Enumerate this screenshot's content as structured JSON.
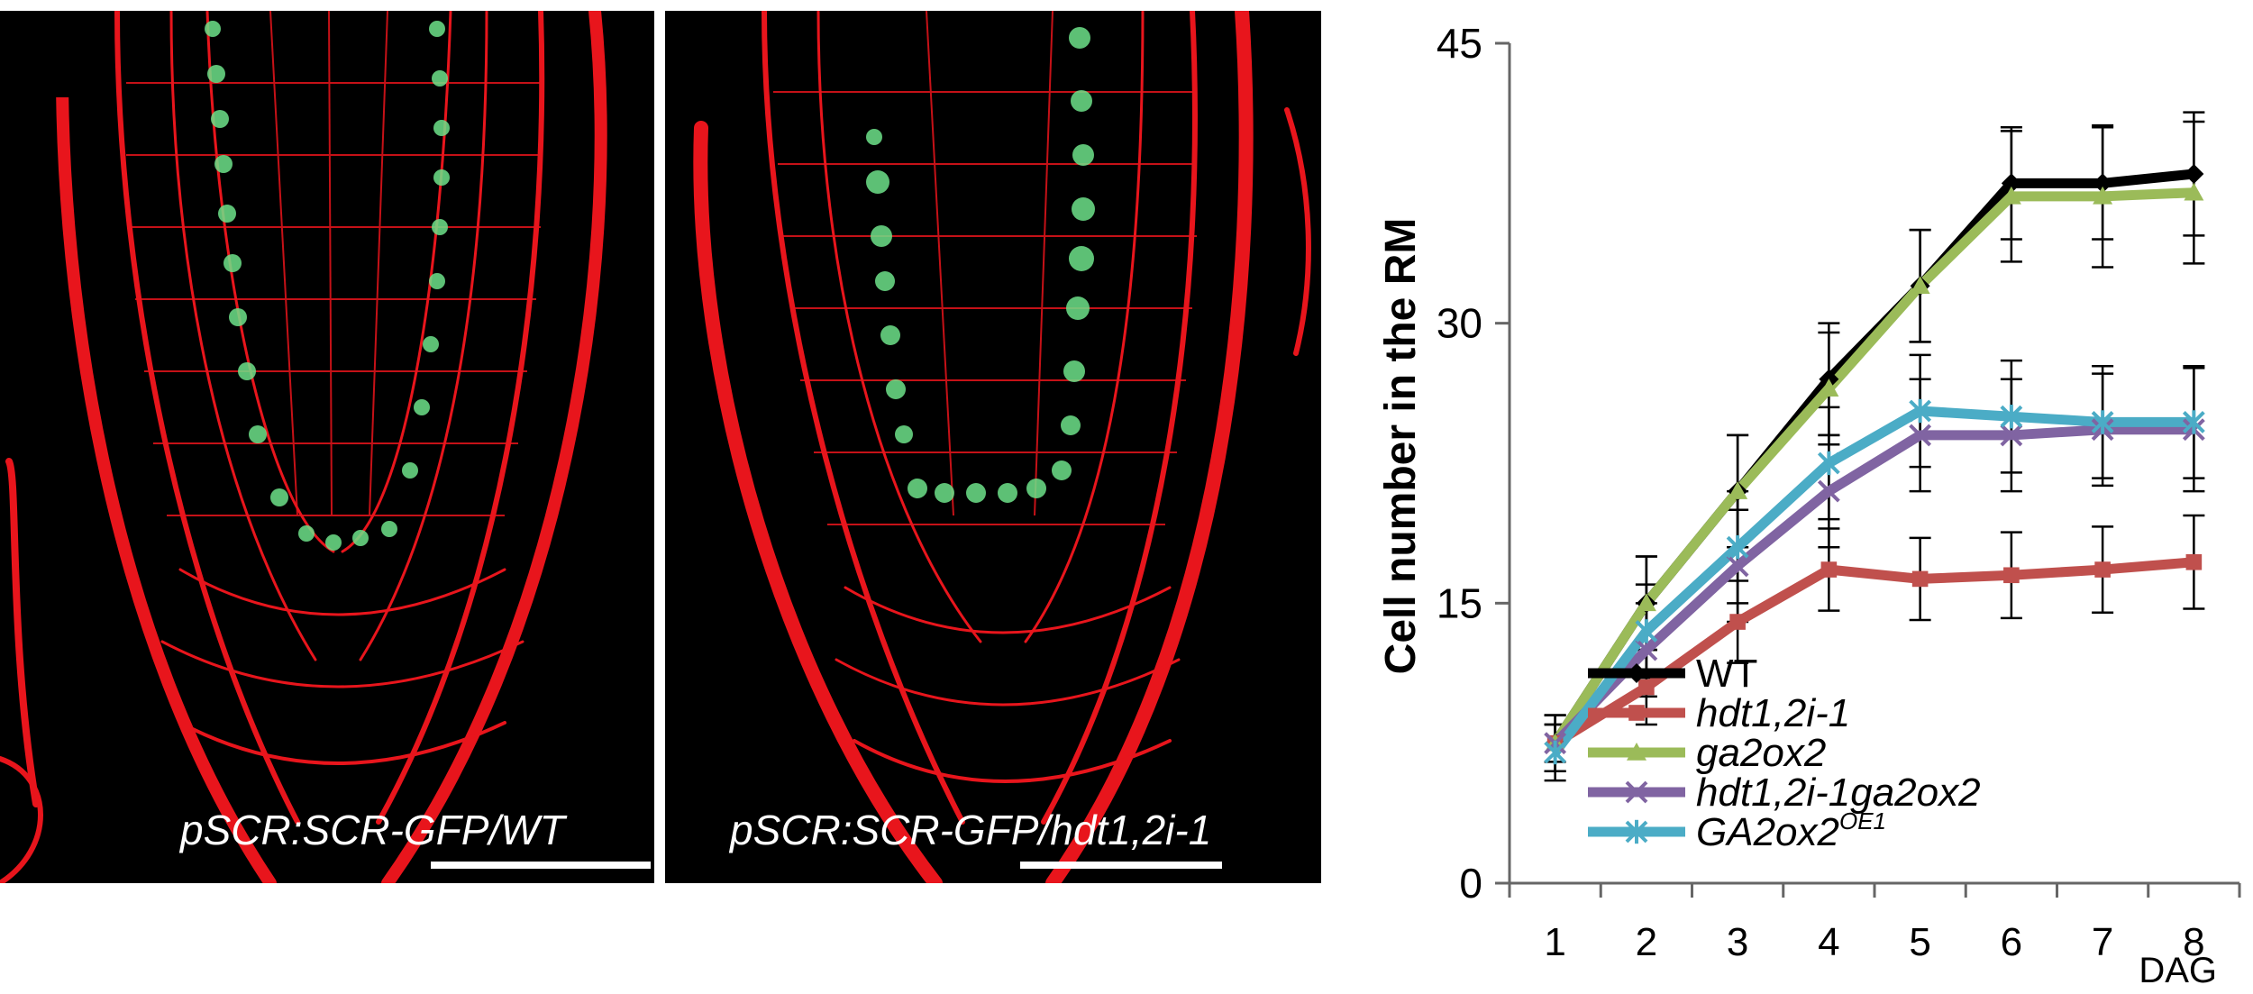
{
  "panels": [
    {
      "caption": "pSCR:SCR-GFP/WT"
    },
    {
      "caption": "pSCR:SCR-GFP/hdt1,2i-1"
    }
  ],
  "colors": {
    "membrane": "#e8151c",
    "gfp": "#6ee28a",
    "background": "#000000"
  },
  "chart_data": {
    "type": "line",
    "title": "",
    "xlabel": "DAG",
    "ylabel": "Cell number in the RM",
    "x": [
      1,
      2,
      3,
      4,
      5,
      6,
      7,
      8
    ],
    "ylim": [
      0,
      45
    ],
    "yticks": [
      0,
      15,
      30,
      45
    ],
    "grid": false,
    "legend_position": "bottom-right",
    "series": [
      {
        "name": "WT",
        "color": "#000000",
        "marker": "diamond",
        "values": [
          7.5,
          15.0,
          21.0,
          27.0,
          32.0,
          37.5,
          37.5,
          38.0
        ],
        "errors": [
          1.5,
          2.5,
          3.0,
          3.0,
          3.0,
          3.0,
          3.0,
          3.3
        ]
      },
      {
        "name": "hdt1,2i-1",
        "color": "#c0504d",
        "marker": "square",
        "values": [
          7.5,
          10.5,
          14.0,
          16.8,
          16.3,
          16.5,
          16.8,
          17.2
        ],
        "errors": [
          1.0,
          2.0,
          2.2,
          2.2,
          2.2,
          2.3,
          2.3,
          2.5
        ]
      },
      {
        "name": "ga2ox2",
        "color": "#9bbb59",
        "marker": "triangle",
        "values": [
          7.5,
          15.0,
          21.0,
          26.5,
          32.0,
          36.8,
          36.8,
          37.0
        ],
        "errors": [
          1.5,
          2.5,
          3.0,
          3.0,
          3.0,
          3.5,
          3.8,
          3.8
        ]
      },
      {
        "name": "hdt1,2i-1ga2ox2",
        "color": "#8064a2",
        "marker": "x",
        "values": [
          7.5,
          12.5,
          17.0,
          21.0,
          24.0,
          24.0,
          24.3,
          24.3
        ],
        "errors": [
          1.5,
          2.5,
          3.0,
          3.0,
          3.0,
          3.0,
          3.0,
          3.3
        ]
      },
      {
        "name": "GA2ox2",
        "name_superscript": "OE1",
        "color": "#4bacc6",
        "marker": "asterisk",
        "values": [
          7.0,
          13.5,
          18.0,
          22.5,
          25.3,
          25.0,
          24.7,
          24.7
        ],
        "errors": [
          1.5,
          2.5,
          3.0,
          3.0,
          3.0,
          3.0,
          3.0,
          3.0
        ]
      }
    ]
  }
}
